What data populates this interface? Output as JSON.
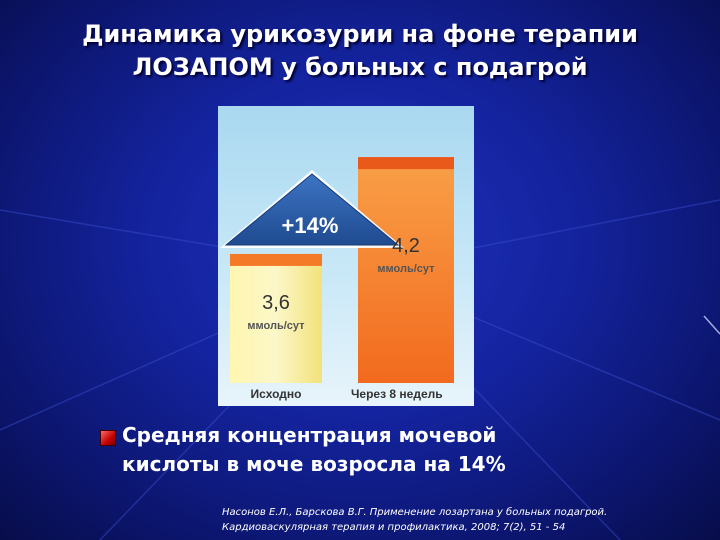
{
  "slide": {
    "title_line1": "Динамика урикозурии на фоне терапии",
    "title_line2": "ЛОЗАПОМ у больных с подагрой",
    "bullet_line1": "Средняя концентрация мочевой",
    "bullet_line2": "кислоты в моче возросла на 14%",
    "reference_line1": "Насонов Е.Л., Барскова В.Г. Применение лозартана у больных подагрой.",
    "reference_line2": "Кардиоваскулярная терапия и профилактика, 2008; 7(2), 51 - 54"
  },
  "chart_data": {
    "type": "bar",
    "categories": [
      "Исходно",
      "Через 8 недель"
    ],
    "values": [
      3.6,
      4.2
    ],
    "value_labels": [
      "3,6",
      "4,2"
    ],
    "unit_label": "ммоль/сут",
    "annotation": "+14%",
    "colors": {
      "bar1": "#fbf19a",
      "bar2": "#f58a2a",
      "bar_cap": "#f26a22",
      "arrow": "#2b5faa"
    }
  }
}
